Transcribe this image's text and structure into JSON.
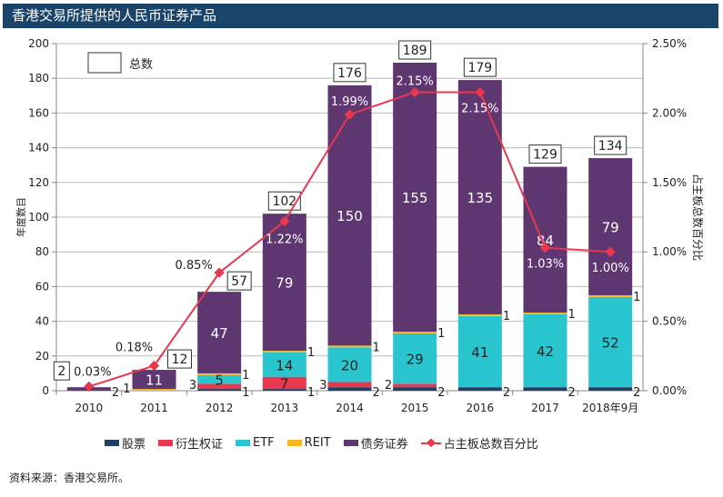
{
  "header": {
    "title": "香港交易所提供的人民币证券产品"
  },
  "chart_data": {
    "type": "bar",
    "stacked": true,
    "title": "香港交易所提供的人民币证券产品",
    "categories": [
      "2010",
      "2011",
      "2012",
      "2013",
      "2014",
      "2015",
      "2016",
      "2017",
      "2018年9月"
    ],
    "series": [
      {
        "name": "股票",
        "color": "#1f3f66",
        "values": [
          0,
          0,
          1,
          1,
          2,
          2,
          2,
          2,
          2
        ]
      },
      {
        "name": "衍生权证",
        "color": "#e8384f",
        "values": [
          0,
          0,
          3,
          7,
          3,
          2,
          0,
          0,
          0
        ]
      },
      {
        "name": "ETF",
        "color": "#29c6d0",
        "values": [
          0,
          0,
          5,
          14,
          20,
          29,
          41,
          42,
          52
        ]
      },
      {
        "name": "REIT",
        "color": "#f5b923",
        "values": [
          0,
          1,
          1,
          1,
          1,
          1,
          1,
          1,
          1
        ]
      },
      {
        "name": "债务证券",
        "color": "#5e3670",
        "values": [
          2,
          11,
          47,
          79,
          150,
          155,
          135,
          84,
          79
        ]
      }
    ],
    "totals": [
      2,
      12,
      57,
      102,
      176,
      189,
      179,
      129,
      134
    ],
    "totals_legend": "总数",
    "line": {
      "name": "占主板总数百分比",
      "color": "#e8384f",
      "axis": "right",
      "values": [
        0.03,
        0.18,
        0.85,
        1.22,
        1.99,
        2.15,
        2.15,
        1.03,
        1.0
      ],
      "labels": [
        "0.03%",
        "0.18%",
        "0.85%",
        "1.22%",
        "1.99%",
        "2.15%",
        "2.15%",
        "1.03%",
        "1.00%"
      ]
    },
    "ylabel": "年度数目",
    "ylabel_right": "占主板总数百分比",
    "ylim": [
      0,
      200
    ],
    "yticks": [
      "0",
      "20",
      "40",
      "60",
      "80",
      "100",
      "120",
      "140",
      "160",
      "180",
      "200"
    ],
    "ylim_right": [
      0,
      2.5
    ],
    "yticks_right": [
      "0.00%",
      "0.50%",
      "1.00%",
      "1.50%",
      "2.00%",
      "2.50%"
    ],
    "grid": true,
    "legend_position": "bottom"
  },
  "source": "资料来源：香港交易所。"
}
